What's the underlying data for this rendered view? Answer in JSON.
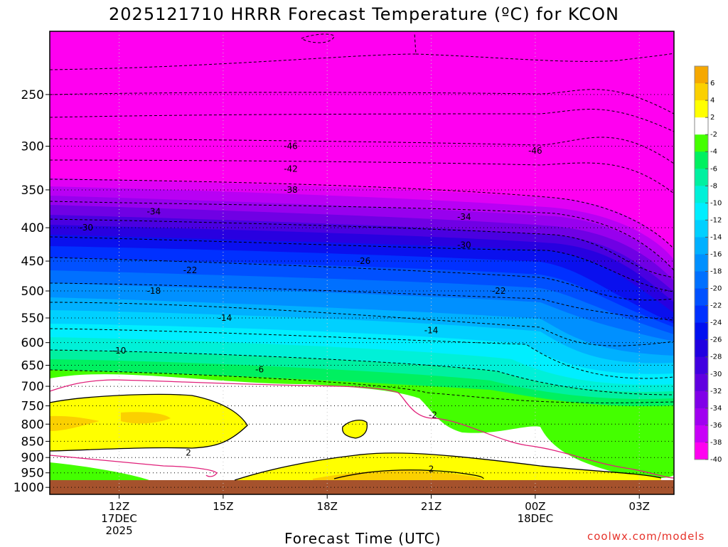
{
  "title": "2025121710 HRRR Forecast Temperature (ºC) for KCON",
  "xlabel": "Forecast Time (UTC)",
  "credit": "coolwx.com/models",
  "chart_data": {
    "type": "heatmap",
    "title": "2025121710 HRRR Forecast Temperature (ºC) for KCON",
    "xlabel": "Forecast Time (UTC)",
    "ylabel": "",
    "y_axis": {
      "ticks": [
        250,
        300,
        350,
        400,
        450,
        500,
        550,
        600,
        650,
        700,
        750,
        800,
        850,
        900,
        950,
        1000
      ],
      "range": [
        200,
        1025
      ],
      "scale": "log-pressure",
      "inverted": true
    },
    "x_axis": {
      "range": [
        10,
        28
      ],
      "ticks": [
        {
          "x": 12,
          "lines": [
            "12Z",
            "17DEC",
            "2025"
          ]
        },
        {
          "x": 15,
          "lines": [
            "15Z"
          ]
        },
        {
          "x": 18,
          "lines": [
            "18Z"
          ]
        },
        {
          "x": 21,
          "lines": [
            "21Z"
          ]
        },
        {
          "x": 24,
          "lines": [
            "00Z",
            "18DEC"
          ]
        },
        {
          "x": 27,
          "lines": [
            "03Z"
          ]
        }
      ]
    },
    "grid": true,
    "colorbar": {
      "labels": [
        "6",
        "4",
        "2",
        "-2",
        "-4",
        "-6",
        "-8",
        "-10",
        "-12",
        "-14",
        "-16",
        "-18",
        "-20",
        "-22",
        "-24",
        "-26",
        "-28",
        "-30",
        "-32",
        "-34",
        "-36",
        "-38",
        "-40"
      ],
      "colors": [
        "#f6a800",
        "#fbd000",
        "#ffff00",
        "#ffffff",
        "#44ff00",
        "#00f060",
        "#00f0a0",
        "#00f0d8",
        "#00eeff",
        "#00d0ff",
        "#00b0ff",
        "#0090ff",
        "#0070ff",
        "#0050ff",
        "#0030ff",
        "#0010f0",
        "#2000e0",
        "#4000e0",
        "#6000e0",
        "#8000e8",
        "#a000f0",
        "#c800f8",
        "#ff00f0"
      ]
    },
    "contour_labels": [
      {
        "text": "-46",
        "x": 16.95,
        "y": 300
      },
      {
        "text": "-42",
        "x": 16.95,
        "y": 325
      },
      {
        "text": "-38",
        "x": 16.95,
        "y": 350
      },
      {
        "text": "-34",
        "x": 13.0,
        "y": 378
      },
      {
        "text": "-30",
        "x": 11.05,
        "y": 400
      },
      {
        "text": "-26",
        "x": 19.05,
        "y": 450
      },
      {
        "text": "-22",
        "x": 14.05,
        "y": 465
      },
      {
        "text": "-18",
        "x": 13.0,
        "y": 500
      },
      {
        "text": "-14",
        "x": 15.05,
        "y": 550
      },
      {
        "text": "-10",
        "x": 12.0,
        "y": 617
      },
      {
        "text": "-6",
        "x": 16.05,
        "y": 660
      },
      {
        "text": "-2",
        "x": 21.05,
        "y": 775
      },
      {
        "text": "2",
        "x": 14.0,
        "y": 885
      },
      {
        "text": "2",
        "x": 21.0,
        "y": 938
      },
      {
        "text": "-14",
        "x": 21.0,
        "y": 575
      },
      {
        "text": "-22",
        "x": 22.95,
        "y": 500
      },
      {
        "text": "-30",
        "x": 21.95,
        "y": 425
      },
      {
        "text": "-34",
        "x": 21.95,
        "y": 385
      },
      {
        "text": "-46",
        "x": 24.0,
        "y": 305
      }
    ]
  }
}
